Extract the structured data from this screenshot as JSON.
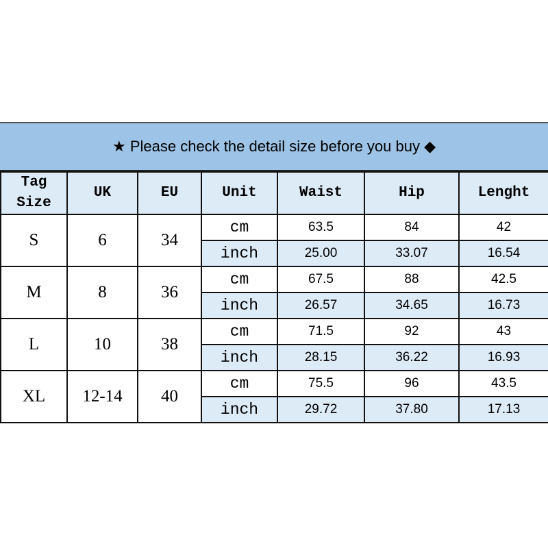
{
  "banner": {
    "star_icon": "★",
    "text": "Please check the detail size before you buy",
    "diamond_icon": "◆"
  },
  "colors": {
    "banner": "#9dc3e6",
    "header": "#ddebf7"
  },
  "headers": [
    "Tag Size",
    "UK",
    "EU",
    "Unit",
    "Waist",
    "Hip",
    "Lenght"
  ],
  "headers_tag": [
    "Tag",
    "Size"
  ],
  "rows": [
    {
      "tag": "S",
      "uk": "6",
      "eu": "34",
      "cm": {
        "unit": "cm",
        "waist": "63.5",
        "hip": "84",
        "length": "42"
      },
      "inch": {
        "unit": "inch",
        "waist": "25.00",
        "hip": "33.07",
        "length": "16.54"
      }
    },
    {
      "tag": "M",
      "uk": "8",
      "eu": "36",
      "cm": {
        "unit": "cm",
        "waist": "67.5",
        "hip": "88",
        "length": "42.5"
      },
      "inch": {
        "unit": "inch",
        "waist": "26.57",
        "hip": "34.65",
        "length": "16.73"
      }
    },
    {
      "tag": "L",
      "uk": "10",
      "eu": "38",
      "cm": {
        "unit": "cm",
        "waist": "71.5",
        "hip": "92",
        "length": "43"
      },
      "inch": {
        "unit": "inch",
        "waist": "28.15",
        "hip": "36.22",
        "length": "16.93"
      }
    },
    {
      "tag": "XL",
      "uk": "12-14",
      "eu": "40",
      "cm": {
        "unit": "cm",
        "waist": "75.5",
        "hip": "96",
        "length": "43.5"
      },
      "inch": {
        "unit": "inch",
        "waist": "29.72",
        "hip": "37.80",
        "length": "17.13"
      }
    }
  ]
}
